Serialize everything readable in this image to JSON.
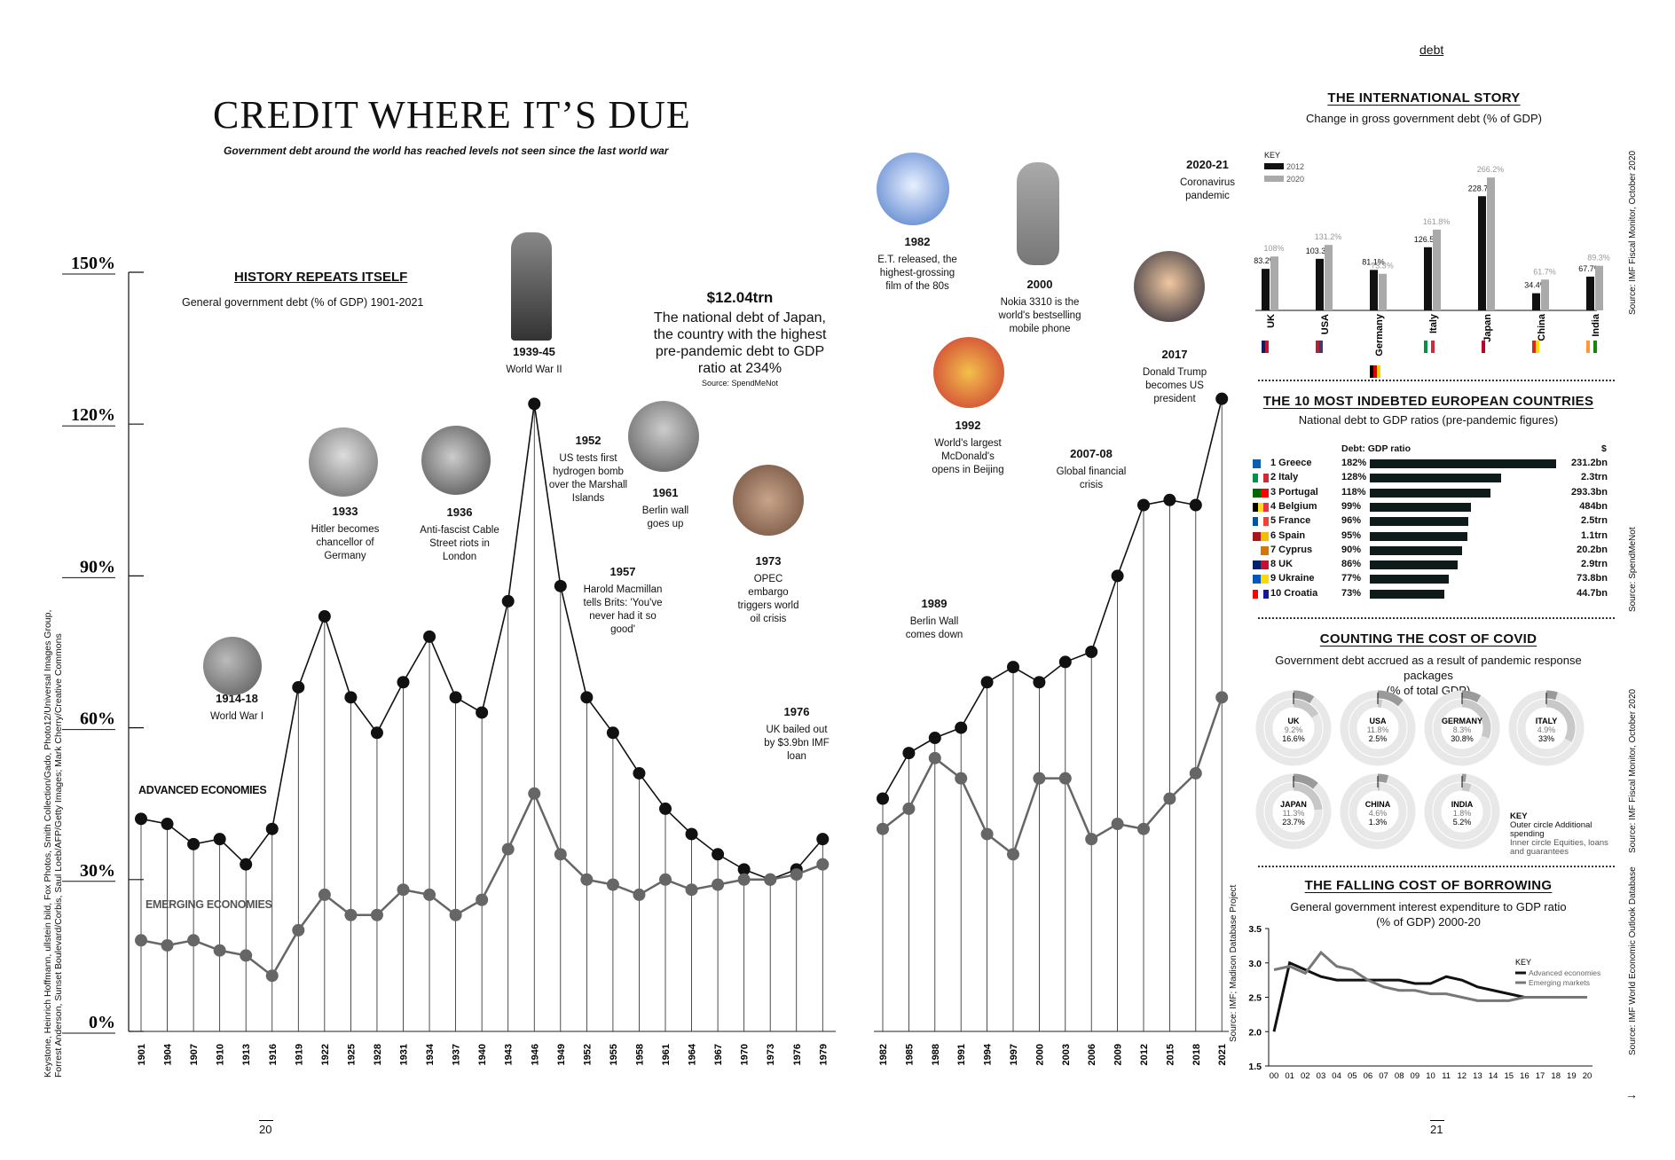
{
  "page": {
    "section": "debt",
    "page_left": "20",
    "page_right": "21",
    "arrow": "→"
  },
  "header": {
    "title": "CREDIT WHERE IT’S DUE",
    "subtitle": "Government debt around the world has reached levels not seen since the last world war"
  },
  "credits": {
    "left": "Keystone, Heinrich Hoffmann, ullstein bild, Fox Photos, Smith Collection/Gado, Photo12/Universal Images Group, Forrest Anderson, Sunset Boulevard/Corbis, Saul Loeb/AFP/Getty Images; Mark Cherry/Creative Commons",
    "main_source": "Source: IMF; Madison Database Project"
  },
  "history": {
    "title": "HISTORY REPEATS ITSELF",
    "subtitle": "General government debt (% of GDP) 1901-2021",
    "advanced_label": "ADVANCED ECONOMIES",
    "emerging_label": "EMERGING ECONOMIES"
  },
  "japan_fact": {
    "amount": "$12.04trn",
    "text": "The national debt of Japan, the country with the highest pre-pandemic debt to GDP ratio at 234%",
    "source": "Source: SpendMeNot"
  },
  "events": [
    {
      "year": "1914-18",
      "text": "World War I"
    },
    {
      "year": "1933",
      "text": "Hitler becomes chancellor of Germany"
    },
    {
      "year": "1936",
      "text": "Anti-fascist Cable Street riots in London"
    },
    {
      "year": "1939-45",
      "text": "World War II"
    },
    {
      "year": "1952",
      "text": "US tests first hydrogen bomb over the Marshall Islands"
    },
    {
      "year": "1957",
      "text": "Harold Macmillan tells Brits: 'You've never had it so good'"
    },
    {
      "year": "1961",
      "text": "Berlin wall goes up"
    },
    {
      "year": "1973",
      "text": "OPEC embargo triggers world oil crisis"
    },
    {
      "year": "1976",
      "text": "UK bailed out by $3.9bn IMF loan"
    },
    {
      "year": "1982",
      "text": "E.T. released, the highest-grossing film of the 80s"
    },
    {
      "year": "1989",
      "text": "Berlin Wall comes down"
    },
    {
      "year": "1992",
      "text": "World's largest McDonald's opens in Beijing"
    },
    {
      "year": "2000",
      "text": "Nokia 3310 is the world's bestselling mobile phone"
    },
    {
      "year": "2007-08",
      "text": "Global financial crisis"
    },
    {
      "year": "2017",
      "text": "Donald Trump becomes US president"
    },
    {
      "year": "2020-21",
      "text": "Coronavirus pandemic"
    }
  ],
  "intl": {
    "title": "THE INTERNATIONAL STORY",
    "subtitle": "Change in gross government debt (% of GDP)",
    "key": "KEY",
    "key2012": "2012",
    "key2020": "2020",
    "source": "Source: IMF Fiscal Monitor, October 2020"
  },
  "europe": {
    "title": "THE 10 MOST INDEBTED EUROPEAN COUNTRIES",
    "subtitle": "National debt to GDP ratios (pre-pandemic figures)",
    "col_ratio": "Debt: GDP ratio",
    "col_dollar": "$",
    "source": "Source: SpendMeNot",
    "rows": [
      {
        "name": "1 Greece",
        "pct": "182%",
        "val": 182,
        "amt": "231.2bn",
        "flag": [
          "#0d5eaf",
          "#ffffff"
        ]
      },
      {
        "name": "2 Italy",
        "pct": "128%",
        "val": 128,
        "amt": "2.3trn",
        "flag": [
          "#009246",
          "#ffffff",
          "#ce2b37"
        ]
      },
      {
        "name": "3 Portugal",
        "pct": "118%",
        "val": 118,
        "amt": "293.3bn",
        "flag": [
          "#006600",
          "#ff0000"
        ]
      },
      {
        "name": "4 Belgium",
        "pct": "99%",
        "val": 99,
        "amt": "484bn",
        "flag": [
          "#000000",
          "#fdda24",
          "#ef3340"
        ]
      },
      {
        "name": "5 France",
        "pct": "96%",
        "val": 96,
        "amt": "2.5trn",
        "flag": [
          "#0055a4",
          "#ffffff",
          "#ef4135"
        ]
      },
      {
        "name": "6 Spain",
        "pct": "95%",
        "val": 95,
        "amt": "1.1trn",
        "flag": [
          "#aa151b",
          "#f1bf00"
        ]
      },
      {
        "name": "7 Cyprus",
        "pct": "90%",
        "val": 90,
        "amt": "20.2bn",
        "flag": [
          "#ffffff",
          "#d57800"
        ]
      },
      {
        "name": "8 UK",
        "pct": "86%",
        "val": 86,
        "amt": "2.9trn",
        "flag": [
          "#012169",
          "#c8102e"
        ]
      },
      {
        "name": "9 Ukraine",
        "pct": "77%",
        "val": 77,
        "amt": "73.8bn",
        "flag": [
          "#0057b7",
          "#ffd700"
        ]
      },
      {
        "name": "10 Croatia",
        "pct": "73%",
        "val": 73,
        "amt": "44.7bn",
        "flag": [
          "#ff0000",
          "#ffffff",
          "#171796"
        ]
      }
    ]
  },
  "covid": {
    "title": "COUNTING THE COST OF COVID",
    "subtitle": "Government debt accrued as a result of pandemic response packages",
    "subtitle2": "(% of total GDP)",
    "key": "KEY",
    "key_outer": "Outer circle Additional spending",
    "key_inner": "Inner circle Equities, loans and guarantees",
    "source": "Source: IMF Fiscal Monitor, October 2020",
    "countries": [
      {
        "name": "UK",
        "outer": "9.2%",
        "inner": "16.6%",
        "o": 9.2,
        "i": 16.6
      },
      {
        "name": "USA",
        "outer": "11.8%",
        "inner": "2.5%",
        "o": 11.8,
        "i": 2.5
      },
      {
        "name": "GERMANY",
        "outer": "8.3%",
        "inner": "30.8%",
        "o": 8.3,
        "i": 30.8
      },
      {
        "name": "ITALY",
        "outer": "4.9%",
        "inner": "33%",
        "o": 4.9,
        "i": 33
      },
      {
        "name": "JAPAN",
        "outer": "11.3%",
        "inner": "23.7%",
        "o": 11.3,
        "i": 23.7
      },
      {
        "name": "CHINA",
        "outer": "4.6%",
        "inner": "1.3%",
        "o": 4.6,
        "i": 1.3
      },
      {
        "name": "INDIA",
        "outer": "1.8%",
        "inner": "5.2%",
        "o": 1.8,
        "i": 5.2
      }
    ]
  },
  "borrow": {
    "title": "THE FALLING COST OF BORROWING",
    "subtitle": "General government interest expenditure to GDP ratio",
    "subtitle2": "(% of GDP) 2000-20",
    "key": "KEY",
    "k1": "Advanced economies",
    "k2": "Emerging markets",
    "source": "Source: IMF World Economic Outlook Database"
  },
  "chart_data": [
    {
      "type": "line",
      "title": "HISTORY REPEATS ITSELF",
      "subtitle": "General government debt (% of GDP) 1901-2021",
      "ylim": [
        0,
        150
      ],
      "yticks": [
        "0%",
        "30%",
        "60%",
        "90%",
        "120%",
        "150%"
      ],
      "x": [
        "1901",
        "1904",
        "1907",
        "1910",
        "1913",
        "1916",
        "1919",
        "1922",
        "1925",
        "1928",
        "1931",
        "1934",
        "1937",
        "1940",
        "1943",
        "1946",
        "1949",
        "1952",
        "1955",
        "1958",
        "1961",
        "1964",
        "1967",
        "1970",
        "1973",
        "1976",
        "1979",
        "1982",
        "1985",
        "1988",
        "1991",
        "1994",
        "1997",
        "2000",
        "2003",
        "2006",
        "2009",
        "2012",
        "2015",
        "2018",
        "2021"
      ],
      "series": [
        {
          "name": "ADVANCED ECONOMIES",
          "values": [
            42,
            41,
            37,
            38,
            33,
            40,
            68,
            82,
            66,
            59,
            69,
            78,
            66,
            63,
            85,
            124,
            88,
            66,
            59,
            51,
            44,
            39,
            35,
            32,
            30,
            32,
            38,
            46,
            55,
            58,
            60,
            69,
            72,
            69,
            73,
            75,
            90,
            104,
            105,
            104,
            125
          ]
        },
        {
          "name": "EMERGING ECONOMIES",
          "values": [
            18,
            17,
            18,
            16,
            15,
            11,
            20,
            27,
            23,
            23,
            28,
            27,
            23,
            26,
            36,
            47,
            35,
            30,
            29,
            27,
            30,
            28,
            29,
            30,
            30,
            31,
            33,
            40,
            44,
            54,
            50,
            39,
            35,
            50,
            50,
            38,
            41,
            40,
            46,
            51,
            66
          ]
        }
      ]
    },
    {
      "type": "bar",
      "title": "THE INTERNATIONAL STORY",
      "categories": [
        "UK",
        "USA",
        "Germany",
        "Italy",
        "Japan",
        "China",
        "India"
      ],
      "series": [
        {
          "name": "2012",
          "values": [
            83.2,
            103.3,
            81.1,
            126.5,
            228.7,
            34.4,
            67.7
          ],
          "labels": [
            "83.2%",
            "103.3%",
            "81.1%",
            "126.5%",
            "228.7%",
            "34.4%",
            "67.7%"
          ]
        },
        {
          "name": "2020",
          "values": [
            108,
            131.2,
            73.3,
            161.8,
            266.2,
            61.7,
            89.3
          ],
          "labels": [
            "108%",
            "131.2%",
            "73.3%",
            "161.8%",
            "266.2%",
            "61.7%",
            "89.3%"
          ]
        }
      ],
      "ylim": [
        0,
        270
      ]
    },
    {
      "type": "line",
      "title": "THE FALLING COST OF BORROWING",
      "x": [
        "00",
        "01",
        "02",
        "03",
        "04",
        "05",
        "06",
        "07",
        "08",
        "09",
        "10",
        "11",
        "12",
        "13",
        "14",
        "15",
        "16",
        "17",
        "18",
        "19",
        "20"
      ],
      "ylim": [
        1.5,
        3.5
      ],
      "yticks": [
        "1.5",
        "2.0",
        "2.5",
        "3.0",
        "3.5"
      ],
      "series": [
        {
          "name": "Advanced economies",
          "values": [
            2.0,
            3.0,
            2.9,
            2.8,
            2.75,
            2.75,
            2.75,
            2.75,
            2.75,
            2.7,
            2.7,
            2.8,
            2.75,
            2.65,
            2.6,
            2.55,
            2.5,
            2.5,
            2.5,
            2.5,
            2.5
          ]
        },
        {
          "name": "Emerging markets",
          "values": [
            2.9,
            2.95,
            2.85,
            3.15,
            2.95,
            2.9,
            2.75,
            2.65,
            2.6,
            2.6,
            2.55,
            2.55,
            2.5,
            2.45,
            2.45,
            2.45,
            2.5,
            2.5,
            2.5,
            2.5,
            2.5
          ]
        }
      ]
    }
  ]
}
